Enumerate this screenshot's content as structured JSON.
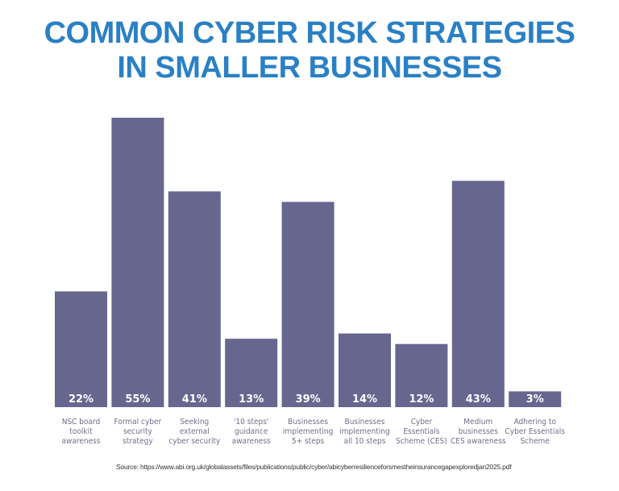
{
  "chart_data": {
    "type": "bar",
    "title": "COMMON CYBER RISK STRATEGIES IN SMALLER BUSINESSES",
    "title_lines": [
      "COMMON CYBER RISK STRATEGIES",
      "IN SMALLER BUSINESSES"
    ],
    "categories": [
      [
        "NSC board",
        "toolkit",
        "awareness"
      ],
      [
        "Formal cyber",
        "security",
        "strategy"
      ],
      [
        "Seeking",
        "external",
        "cyber security"
      ],
      [
        "'10 steps'",
        "guidance",
        "awareness"
      ],
      [
        "Businesses",
        "implementing",
        "5+ steps"
      ],
      [
        "Businesses",
        "implementing",
        "all 10 steps"
      ],
      [
        "Cyber",
        "Essentials",
        "Scheme (CES)"
      ],
      [
        "Medium",
        "businesses",
        "CES awareness"
      ],
      [
        "Adhering to",
        "Cyber Essentials",
        "Scheme"
      ]
    ],
    "values": [
      22,
      55,
      41,
      13,
      39,
      14,
      12,
      43,
      3
    ],
    "data_labels": [
      "22%",
      "55%",
      "41%",
      "13%",
      "39%",
      "14%",
      "12%",
      "43%",
      "3%"
    ],
    "unit": "%",
    "ylim": [
      0,
      55
    ],
    "grid": false,
    "colors": {
      "bar": "#67668f",
      "title": "#2a80c5",
      "label": "#6f6f8a"
    }
  },
  "source": "Source: https://www.abi.org.uk/globalassets/files/publications/public/cyber/abicyberresilienceforsmestheinsurancegapexploredjan2025.pdf"
}
